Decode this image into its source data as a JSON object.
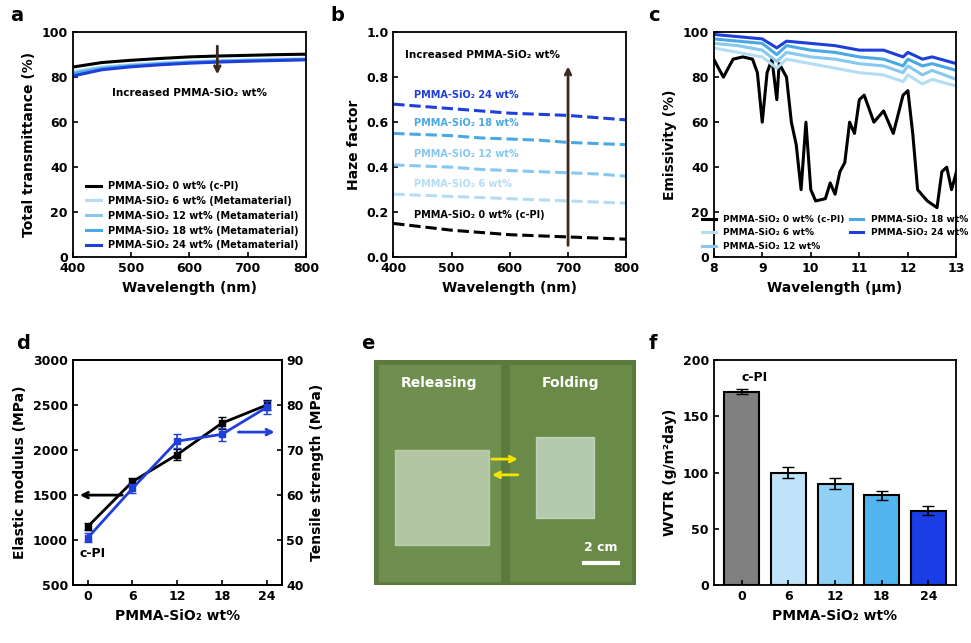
{
  "chart_data": [
    {
      "type": "line",
      "title": "a",
      "x_label": "Wavelength (nm)",
      "y_label": "Total transmittance (%)",
      "x": [
        400,
        450,
        500,
        550,
        600,
        650,
        700,
        750,
        800
      ],
      "xlim": [
        400,
        800
      ],
      "xticks": [
        400,
        500,
        600,
        700,
        800
      ],
      "ylim": [
        0,
        100
      ],
      "yticks": [
        0,
        20,
        40,
        60,
        80,
        100
      ],
      "legend": "lower right",
      "annotations": [
        "Increased PMMA-SiO₂ wt%"
      ],
      "series": [
        {
          "name": "PMMA-SiO₂ 0 wt% (c-PI)",
          "color": "#000000",
          "values": [
            84.5,
            86.5,
            87.5,
            88.3,
            89.0,
            89.4,
            89.7,
            90.0,
            90.2
          ]
        },
        {
          "name": "PMMA-SiO₂ 6 wt% (Metamaterial)",
          "color": "#b5dcf5",
          "values": [
            82.5,
            84.5,
            85.5,
            86.3,
            86.9,
            87.3,
            87.7,
            88.0,
            88.2
          ]
        },
        {
          "name": "PMMA-SiO₂ 12 wt% (Metamaterial)",
          "color": "#86c8ef",
          "values": [
            82.0,
            84.2,
            85.3,
            86.1,
            86.7,
            87.2,
            87.5,
            87.8,
            88.0
          ]
        },
        {
          "name": "PMMA-SiO₂ 18 wt% (Metamaterial)",
          "color": "#4aa8e3",
          "values": [
            81.5,
            83.8,
            85.0,
            85.8,
            86.5,
            87.0,
            87.3,
            87.6,
            87.9
          ]
        },
        {
          "name": "PMMA-SiO₂ 24 wt% (Metamaterial)",
          "color": "#1f3fdb",
          "values": [
            80.5,
            83.3,
            84.6,
            85.5,
            86.2,
            86.7,
            87.1,
            87.4,
            87.7
          ]
        }
      ]
    },
    {
      "type": "line",
      "title": "b",
      "x_label": "Wavelength (nm)",
      "y_label": "Haze factor",
      "line_style": "dashed",
      "x": [
        400,
        450,
        500,
        550,
        600,
        650,
        700,
        750,
        800
      ],
      "xlim": [
        400,
        800
      ],
      "xticks": [
        400,
        500,
        600,
        700,
        800
      ],
      "ylim": [
        0.0,
        1.0
      ],
      "yticks": [
        0.0,
        0.2,
        0.4,
        0.6,
        0.8,
        1.0
      ],
      "annotations": [
        "Increased PMMA-SiO₂ wt%"
      ],
      "series": [
        {
          "name": "PMMA-SiO₂ 0 wt% (c-PI)",
          "color": "#000000",
          "values": [
            0.15,
            0.135,
            0.12,
            0.11,
            0.1,
            0.095,
            0.09,
            0.085,
            0.08
          ]
        },
        {
          "name": "PMMA-SiO₂ 6 wt%",
          "color": "#b5dcf5",
          "values": [
            0.28,
            0.275,
            0.27,
            0.265,
            0.26,
            0.255,
            0.25,
            0.245,
            0.24
          ]
        },
        {
          "name": "PMMA-SiO₂ 12 wt%",
          "color": "#86c8ef",
          "values": [
            0.41,
            0.405,
            0.4,
            0.39,
            0.385,
            0.38,
            0.375,
            0.37,
            0.36
          ]
        },
        {
          "name": "PMMA-SiO₂ 18 wt%",
          "color": "#4aa8e3",
          "values": [
            0.55,
            0.545,
            0.54,
            0.53,
            0.525,
            0.52,
            0.51,
            0.505,
            0.5
          ]
        },
        {
          "name": "PMMA-SiO₂ 24 wt%",
          "color": "#1f3fdb",
          "values": [
            0.68,
            0.67,
            0.66,
            0.65,
            0.64,
            0.635,
            0.63,
            0.62,
            0.61
          ]
        }
      ]
    },
    {
      "type": "line",
      "title": "c",
      "x_label": "Wavelength (μm)",
      "y_label": "Emissivity (%)",
      "xlim": [
        8,
        13
      ],
      "xticks": [
        8,
        9,
        10,
        11,
        12,
        13
      ],
      "ylim": [
        0,
        100
      ],
      "yticks": [
        0,
        20,
        40,
        60,
        80,
        100
      ],
      "legend": "lower center",
      "series": [
        {
          "name": "PMMA-SiO₂ 0 wt% (c-PI)",
          "color": "#000000",
          "x": [
            8.0,
            8.2,
            8.4,
            8.6,
            8.8,
            8.9,
            9.0,
            9.1,
            9.2,
            9.3,
            9.35,
            9.5,
            9.6,
            9.7,
            9.8,
            9.9,
            10.0,
            10.1,
            10.3,
            10.4,
            10.5,
            10.6,
            10.7,
            10.8,
            10.9,
            11.0,
            11.1,
            11.3,
            11.5,
            11.6,
            11.7,
            11.9,
            12.0,
            12.1,
            12.2,
            12.4,
            12.6,
            12.7,
            12.8,
            12.9,
            13.0
          ],
          "values": [
            88,
            80,
            88,
            89,
            88,
            82,
            60,
            82,
            88,
            70,
            86,
            80,
            60,
            50,
            30,
            60,
            30,
            25,
            26,
            33,
            28,
            38,
            42,
            60,
            55,
            70,
            72,
            60,
            65,
            60,
            55,
            72,
            74,
            55,
            30,
            25,
            22,
            38,
            40,
            30,
            38
          ]
        },
        {
          "name": "PMMA-SiO₂ 6 wt%",
          "color": "#b5dcf5",
          "x": [
            8.0,
            8.5,
            9.0,
            9.3,
            9.5,
            10.0,
            10.5,
            11.0,
            11.5,
            11.9,
            12.0,
            12.3,
            12.5,
            13.0
          ],
          "values": [
            93,
            91,
            89,
            84,
            88,
            86,
            84,
            82,
            81,
            78,
            81,
            77,
            79,
            76
          ]
        },
        {
          "name": "PMMA-SiO₂ 12 wt%",
          "color": "#86c8ef",
          "x": [
            8.0,
            8.5,
            9.0,
            9.3,
            9.5,
            10.0,
            10.5,
            11.0,
            11.5,
            11.9,
            12.0,
            12.3,
            12.5,
            13.0
          ],
          "values": [
            95,
            94,
            92,
            87,
            91,
            89,
            88,
            86,
            85,
            82,
            85,
            81,
            83,
            79
          ]
        },
        {
          "name": "PMMA-SiO₂ 18 wt%",
          "color": "#4aa8e3",
          "x": [
            8.0,
            8.5,
            9.0,
            9.3,
            9.5,
            10.0,
            10.5,
            11.0,
            11.5,
            11.9,
            12.0,
            12.3,
            12.5,
            13.0
          ],
          "values": [
            97,
            96,
            95,
            90,
            94,
            92,
            91,
            89,
            88,
            85,
            88,
            85,
            86,
            83
          ]
        },
        {
          "name": "PMMA-SiO₂ 24 wt%",
          "color": "#1f3fdb",
          "x": [
            8.0,
            8.5,
            9.0,
            9.3,
            9.5,
            10.0,
            10.5,
            11.0,
            11.5,
            11.9,
            12.0,
            12.3,
            12.5,
            13.0
          ],
          "values": [
            99,
            98,
            97,
            93,
            96,
            95,
            94,
            92,
            92,
            89,
            91,
            88,
            89,
            86
          ]
        }
      ]
    },
    {
      "type": "line",
      "title": "d",
      "x_label": "PMMA-SiO₂ wt%",
      "y_label": "Elastic modulus (MPa)",
      "y2_label": "Tensile strength (MPa)",
      "marker": "square",
      "x": [
        0,
        6,
        12,
        18,
        24
      ],
      "xlim": [
        -2,
        26
      ],
      "xticks": [
        0,
        6,
        12,
        18,
        24
      ],
      "ylim": [
        500,
        3000
      ],
      "yticks": [
        500,
        1000,
        1500,
        2000,
        2500,
        3000
      ],
      "y2lim": [
        40,
        90
      ],
      "y2ticks": [
        40,
        50,
        60,
        70,
        80,
        90
      ],
      "annotations": [
        "c-PI"
      ],
      "series": [
        {
          "name": "Elastic modulus",
          "color": "#000000",
          "values": [
            1150,
            1650,
            1950,
            2300,
            2500
          ],
          "errors": [
            40,
            40,
            60,
            70,
            60
          ]
        },
        {
          "name": "Tensile strength",
          "color": "#1f3fdb",
          "axis": "y2",
          "values": [
            50.5,
            61.5,
            72,
            73.5,
            79.5
          ],
          "errors": [
            1.0,
            1.0,
            1.5,
            1.5,
            1.5
          ]
        }
      ]
    },
    {
      "type": "image",
      "title": "e",
      "annotations": [
        "Releasing",
        "Folding",
        "2 cm"
      ]
    },
    {
      "type": "bar",
      "title": "f",
      "x_label": "PMMA-SiO₂ wt%",
      "y_label": "WVTR (g/m²day)",
      "categories": [
        "0",
        "6",
        "12",
        "18",
        "24"
      ],
      "values": [
        172,
        100,
        90,
        80,
        66
      ],
      "errors": [
        2,
        5,
        5,
        4,
        4
      ],
      "colors": [
        "#808080",
        "#bfe3f8",
        "#90d0f4",
        "#52b5ef",
        "#1a3de6"
      ],
      "ylim": [
        0,
        200
      ],
      "yticks": [
        0,
        50,
        100,
        150,
        200
      ],
      "annotations": [
        "c-PI"
      ]
    }
  ]
}
